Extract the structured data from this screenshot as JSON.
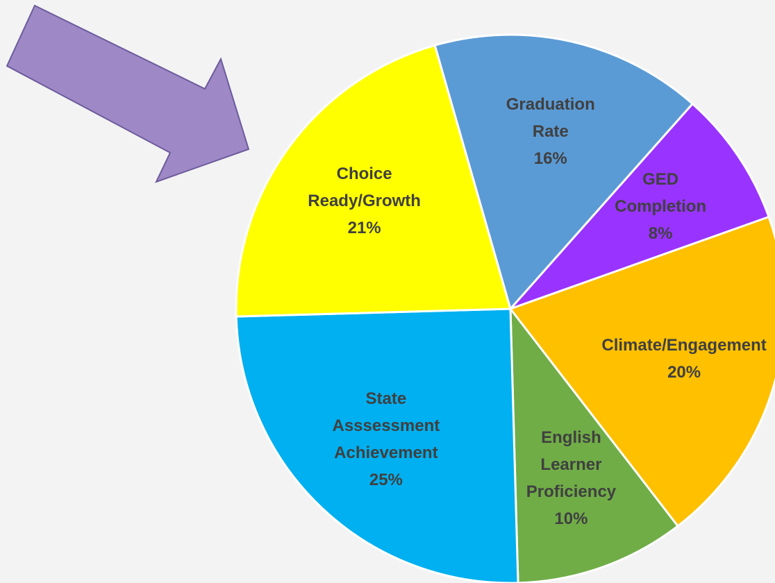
{
  "chart_data": {
    "type": "pie",
    "categories": [
      [
        "Graduation",
        "Rate"
      ],
      [
        "GED",
        "Completion"
      ],
      [
        "Climate/Engagement"
      ],
      [
        "English",
        "Learner",
        "Proficiency"
      ],
      [
        "State",
        "Asssessment",
        "Achievement"
      ],
      [
        "Choice",
        "Ready/Growth"
      ]
    ],
    "values": [
      16,
      8,
      20,
      10,
      25,
      21
    ],
    "value_labels": [
      "16%",
      "8%",
      "20%",
      "10%",
      "25%",
      "21%"
    ],
    "colors": [
      "#5b9bd5",
      "#9933ff",
      "#ffc000",
      "#70ad47",
      "#00b0f0",
      "#ffff00"
    ]
  }
}
